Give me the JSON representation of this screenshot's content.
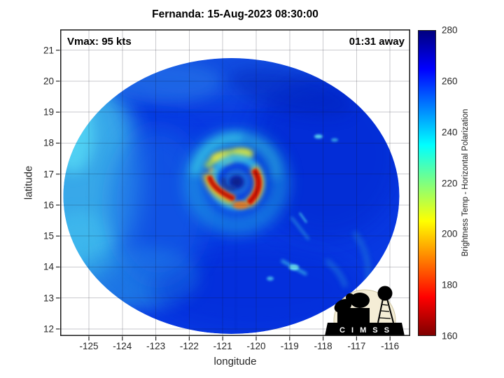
{
  "title": "Fernanda: 15-Aug-2023 08:30:00",
  "annotations": {
    "vmax": "Vmax: 95 kts",
    "eta": "01:31 away"
  },
  "axes": {
    "x": {
      "label": "longitude",
      "ticks": [
        -125,
        -124,
        -123,
        -122,
        -121,
        -120,
        -119,
        -118,
        -117,
        -116
      ]
    },
    "y": {
      "label": "latitude",
      "ticks": [
        12,
        13,
        14,
        15,
        16,
        17,
        18,
        19,
        20,
        21
      ]
    }
  },
  "colorbar": {
    "label": "Brightness Temp - Horizontal Polarization",
    "min": 160,
    "max": 280,
    "ticks": [
      160,
      180,
      200,
      220,
      240,
      260,
      280
    ],
    "stops": [
      {
        "value": 280,
        "color": "#00007f"
      },
      {
        "value": 265,
        "color": "#0000ff"
      },
      {
        "value": 235,
        "color": "#00ffff"
      },
      {
        "value": 205,
        "color": "#ffff00"
      },
      {
        "value": 175,
        "color": "#ff0000"
      },
      {
        "value": 160,
        "color": "#7f0000"
      }
    ]
  },
  "logo": {
    "text": "C I M S S"
  },
  "chart_data": {
    "type": "heatmap",
    "title": "Fernanda: 15-Aug-2023 08:30:00",
    "xlabel": "longitude",
    "ylabel": "latitude",
    "xlim": [
      -125.8,
      -115.4
    ],
    "ylim": [
      11.8,
      21.8
    ],
    "x_ticks": [
      -125,
      -124,
      -123,
      -122,
      -121,
      -120,
      -119,
      -118,
      -117,
      -116
    ],
    "y_ticks": [
      12,
      13,
      14,
      15,
      16,
      17,
      18,
      19,
      20,
      21
    ],
    "grid": true,
    "colorbar": {
      "label": "Brightness Temp - Horizontal Polarization",
      "range": [
        160,
        280
      ],
      "ticks": [
        160,
        180,
        200,
        220,
        240,
        260,
        280
      ],
      "colormap": "reversed jet (160 K = dark red, 205 K = yellow, 235 K = cyan, 280 K = dark blue)"
    },
    "storm": {
      "name": "Fernanda",
      "timestamp": "15-Aug-2023 08:30:00",
      "vmax_kts": 95,
      "time_offset": "01:31 away",
      "eye_center": {
        "lon": -120.6,
        "lat": 16.75
      }
    },
    "swath": {
      "shape": "circular",
      "center": {
        "lon": -120.7,
        "lat": 16.7
      },
      "radius_deg": 5.0,
      "description": "Microwave brightness-temperature swath: ocean background ~250-262 K (blue), swath rim ~238-245 K (cyan), eyewall arcs ~170-185 K (red) with ~200-210 K (yellow-orange) fringes west and east of the eye, ~270 K dark-blue eye, ~215-235 K yellow/cyan spiral band north of the eye, scattered ~235 K convective streaks in the southeast quadrant"
    },
    "features": [
      {
        "name": "eye",
        "lon": -120.6,
        "lat": 16.75,
        "value_K": 270
      },
      {
        "name": "west-eyewall-arc",
        "lon": -121.3,
        "lat": 16.4,
        "value_K": 175
      },
      {
        "name": "east-eyewall-arc",
        "lon": -120.4,
        "lat": 16.6,
        "value_K": 170
      },
      {
        "name": "north-spiral-band",
        "lon": -120.9,
        "lat": 17.3,
        "value_K": 215
      },
      {
        "name": "southeast-rainband-streaks",
        "lon": -118.9,
        "lat": 14.5,
        "value_K": 235
      }
    ]
  }
}
